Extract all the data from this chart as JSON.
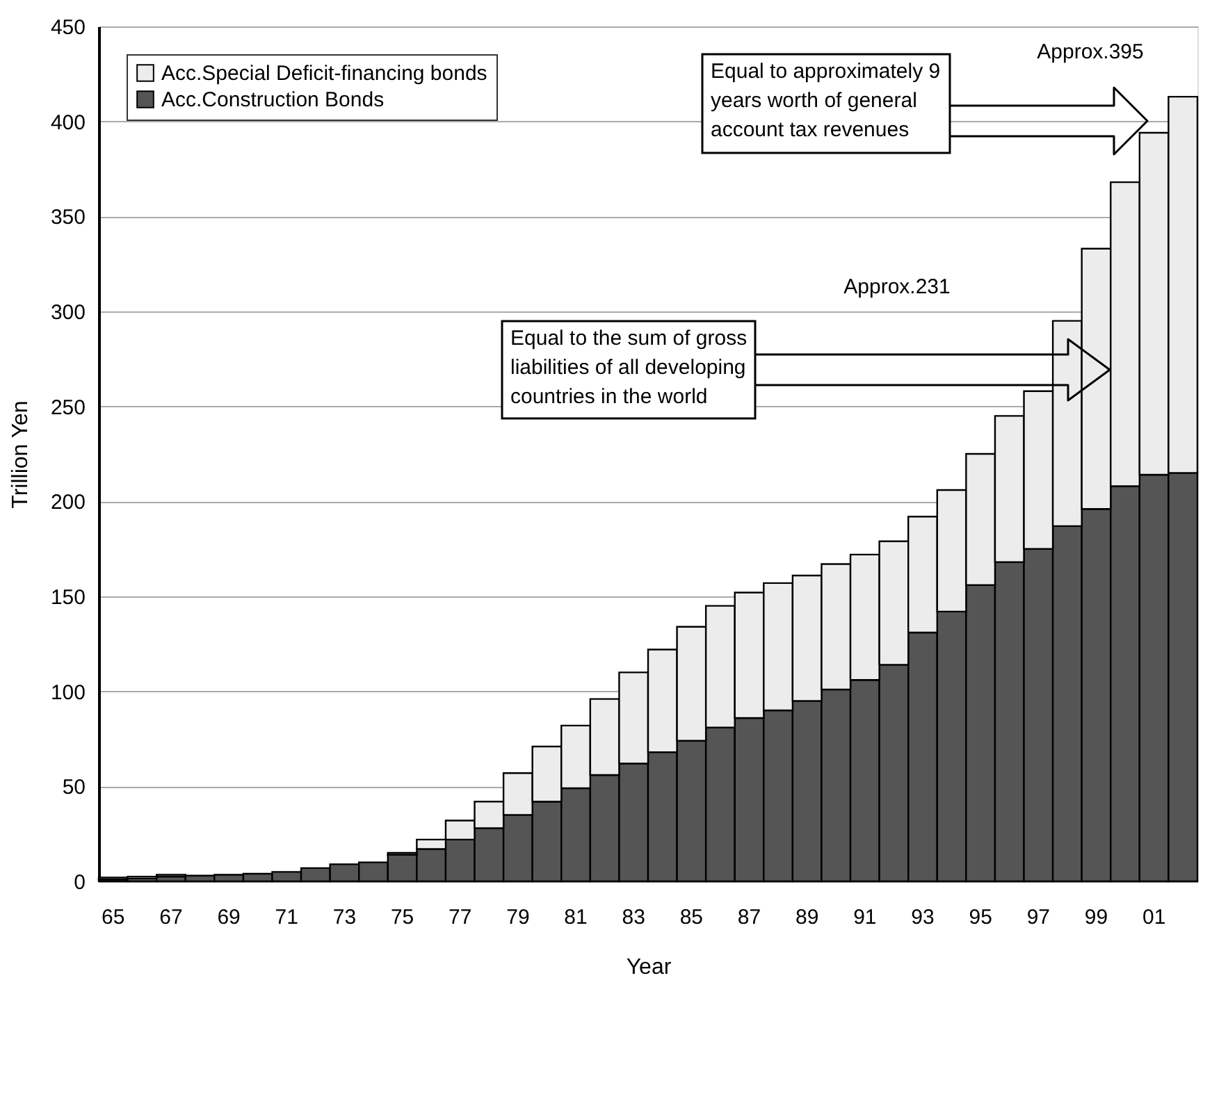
{
  "chart_data": {
    "type": "bar",
    "stacked": true,
    "xlabel": "Year",
    "ylabel": "Trillion Yen",
    "categories": [
      "65",
      null,
      "67",
      null,
      "69",
      null,
      "71",
      null,
      "73",
      null,
      "75",
      null,
      "77",
      null,
      "79",
      null,
      "81",
      null,
      "83",
      null,
      "85",
      null,
      "87",
      null,
      "89",
      null,
      "91",
      null,
      "93",
      null,
      "95",
      null,
      "97",
      null,
      "99",
      null,
      "01",
      null
    ],
    "series": [
      {
        "name": "Acc.Construction Bonds",
        "color": "#555555",
        "values": [
          1,
          1.5,
          2.5,
          3,
          3.5,
          4,
          5,
          7,
          9,
          10,
          14,
          17,
          22,
          28,
          35,
          42,
          49,
          56,
          62,
          68,
          74,
          81,
          86,
          90,
          95,
          101,
          106,
          114,
          131,
          142,
          156,
          168,
          175,
          187,
          196,
          208,
          214,
          215
        ]
      },
      {
        "name": "Acc.Special Deficit-financing bonds",
        "color": "#ececec",
        "values": [
          1,
          1,
          1,
          null,
          null,
          null,
          null,
          null,
          null,
          null,
          1,
          5,
          10,
          14,
          22,
          29,
          33,
          40,
          48,
          54,
          60,
          64,
          66,
          67,
          66,
          66,
          66,
          65,
          61,
          64,
          69,
          77,
          83,
          108,
          137,
          160,
          180,
          198
        ]
      }
    ],
    "ylim": [
      0,
      450
    ],
    "yticks": [
      0,
      50,
      100,
      150,
      200,
      250,
      300,
      350,
      400,
      450
    ],
    "grid": "y",
    "legend": "top left",
    "annotations": [
      "Equal to approximately 9 years worth of general account tax revenues",
      "Approx.395",
      "Equal to the sum of gross liabilities of all developing countries in the world",
      "Approx.231"
    ]
  }
}
